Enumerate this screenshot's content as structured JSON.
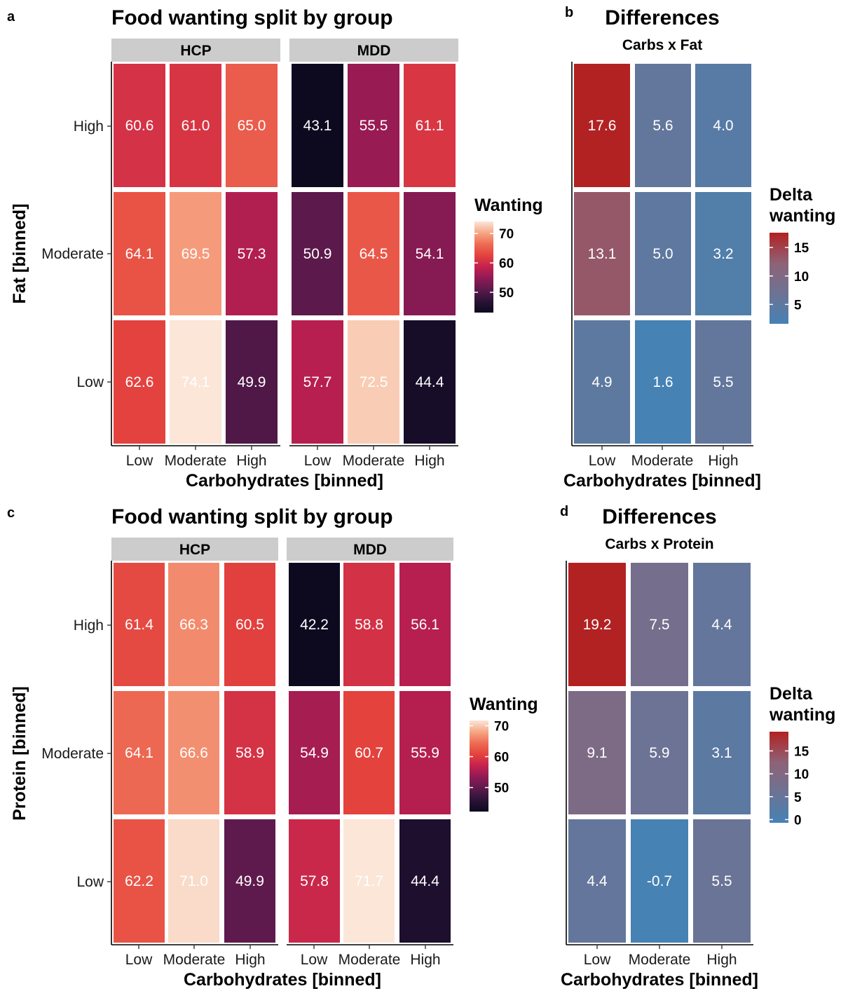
{
  "colors": {
    "wanting_scale": [
      "#0d0a20",
      "#2a1337",
      "#5b1a4c",
      "#8e1a54",
      "#c3214f",
      "#e3413d",
      "#ee6b53",
      "#f6a684",
      "#fbe6d8"
    ],
    "delta_scale": [
      "#4682b4",
      "#6d7394",
      "#8e6276",
      "#b22222"
    ],
    "strip_bg": "#cccccc"
  },
  "chart_data": [
    {
      "type": "heatmap",
      "panel_label": "a",
      "title": "Food wanting split by group",
      "facets": [
        "HCP",
        "MDD"
      ],
      "x_categories": [
        "Low",
        "Moderate",
        "High"
      ],
      "y_categories": [
        "High",
        "Moderate",
        "Low"
      ],
      "xlabel": "Carbohydrates [binned]",
      "ylabel": "Fat [binned]",
      "values": {
        "HCP": [
          [
            60.6,
            61.0,
            65.0
          ],
          [
            64.1,
            69.5,
            57.3
          ],
          [
            62.6,
            74.1,
            49.9
          ]
        ],
        "MDD": [
          [
            43.1,
            55.5,
            61.1
          ],
          [
            50.9,
            64.5,
            54.1
          ],
          [
            57.7,
            72.5,
            44.4
          ]
        ]
      },
      "legend": {
        "title": "Wanting",
        "ticks": [
          70,
          60,
          50
        ],
        "min": 43.1,
        "max": 74.1
      }
    },
    {
      "type": "heatmap",
      "panel_label": "b",
      "title": "Differences",
      "subtitle": "Carbs x Fat",
      "x_categories": [
        "Low",
        "Moderate",
        "High"
      ],
      "y_categories": [
        "High",
        "Moderate",
        "Low"
      ],
      "xlabel": "Carbohydrates [binned]",
      "values": [
        [
          17.6,
          5.6,
          4.0
        ],
        [
          13.1,
          5.0,
          3.2
        ],
        [
          4.9,
          1.6,
          5.5
        ]
      ],
      "legend": {
        "title_line1": "Delta",
        "title_line2": "wanting",
        "ticks": [
          15,
          10,
          5
        ],
        "min": 1.6,
        "max": 17.6
      }
    },
    {
      "type": "heatmap",
      "panel_label": "c",
      "title": "Food wanting split by group",
      "facets": [
        "HCP",
        "MDD"
      ],
      "x_categories": [
        "Low",
        "Moderate",
        "High"
      ],
      "y_categories": [
        "High",
        "Moderate",
        "Low"
      ],
      "xlabel": "Carbohydrates [binned]",
      "ylabel": "Protein [binned]",
      "values": {
        "HCP": [
          [
            61.4,
            66.3,
            60.5
          ],
          [
            64.1,
            66.6,
            58.9
          ],
          [
            62.2,
            71.0,
            49.9
          ]
        ],
        "MDD": [
          [
            42.2,
            58.8,
            56.1
          ],
          [
            54.9,
            60.7,
            55.9
          ],
          [
            57.8,
            71.7,
            44.4
          ]
        ]
      },
      "legend": {
        "title": "Wanting",
        "ticks": [
          70,
          60,
          50
        ],
        "min": 42.2,
        "max": 71.7
      }
    },
    {
      "type": "heatmap",
      "panel_label": "d",
      "title": "Differences",
      "subtitle": "Carbs x Protein",
      "x_categories": [
        "Low",
        "Moderate",
        "High"
      ],
      "y_categories": [
        "High",
        "Moderate",
        "Low"
      ],
      "xlabel": "Carbohydrates [binned]",
      "values": [
        [
          19.2,
          7.5,
          4.4
        ],
        [
          9.1,
          5.9,
          3.1
        ],
        [
          4.4,
          -0.7,
          5.5
        ]
      ],
      "legend": {
        "title_line1": "Delta",
        "title_line2": "wanting",
        "ticks": [
          15,
          10,
          5,
          0
        ],
        "min": -0.7,
        "max": 19.2
      }
    }
  ]
}
